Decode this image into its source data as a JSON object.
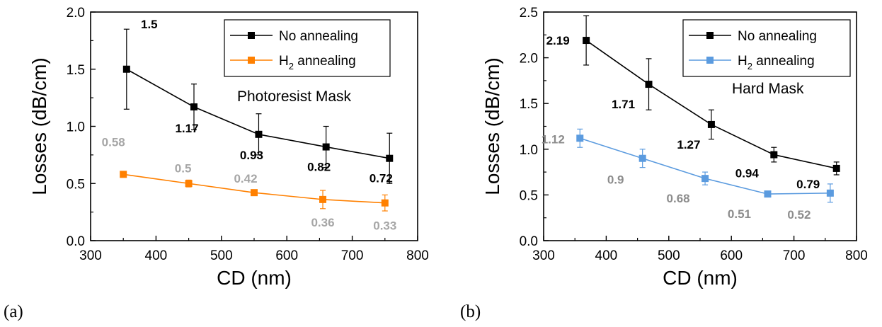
{
  "colors": {
    "no_annealing": "#000000",
    "h2_annealing_a": "#ff8000",
    "h2_annealing_b": "#5b9bdf",
    "label_gray": "#a6a6a6"
  },
  "chart_data": [
    {
      "type": "line",
      "panel_label": "(a)",
      "annotation": "Photoresist Mask",
      "xlabel": "CD (nm)",
      "ylabel": "Losses (dB/cm)",
      "xlim": [
        300,
        800
      ],
      "ylim": [
        0.0,
        2.0
      ],
      "xticks": [
        "300",
        "400",
        "500",
        "600",
        "700",
        "800"
      ],
      "yticks": [
        "0.0",
        "0.5",
        "1.0",
        "1.5",
        "2.0"
      ],
      "legend_position": "top-right",
      "series": [
        {
          "name": "No annealing",
          "x": [
            355,
            458,
            557,
            660,
            757
          ],
          "y": [
            1.5,
            1.17,
            0.93,
            0.82,
            0.72
          ],
          "err": [
            0.35,
            0.2,
            0.18,
            0.18,
            0.22
          ],
          "labels": [
            "1.5",
            "1.17",
            "0.93",
            "0.82",
            "0.72"
          ]
        },
        {
          "name_main": "H",
          "name_sub": "2",
          "name_rest": " annealing",
          "x": [
            350,
            450,
            550,
            655,
            750
          ],
          "y": [
            0.58,
            0.5,
            0.42,
            0.36,
            0.33
          ],
          "err": [
            0.0,
            0.03,
            0.0,
            0.08,
            0.07
          ],
          "labels": [
            "0.58",
            "0.5",
            "0.42",
            "0.36",
            "0.33"
          ]
        }
      ]
    },
    {
      "type": "line",
      "panel_label": "(b)",
      "annotation": "Hard Mask",
      "xlabel": "CD (nm)",
      "ylabel": "Losses (dB/cm)",
      "xlim": [
        300,
        800
      ],
      "ylim": [
        0.0,
        2.5
      ],
      "xticks": [
        "300",
        "400",
        "500",
        "600",
        "700",
        "800"
      ],
      "yticks": [
        "0.0",
        "0.5",
        "1.0",
        "1.5",
        "2.0",
        "2.5"
      ],
      "legend_position": "top-right",
      "series": [
        {
          "name": "No annealing",
          "x": [
            368,
            468,
            568,
            668,
            768
          ],
          "y": [
            2.19,
            1.71,
            1.27,
            0.94,
            0.79
          ],
          "err": [
            0.27,
            0.28,
            0.16,
            0.08,
            0.07
          ],
          "labels": [
            "2.19",
            "1.71",
            "1.27",
            "0.94",
            "0.79"
          ]
        },
        {
          "name_main": "H",
          "name_sub": "2",
          "name_rest": " annealing",
          "x": [
            358,
            458,
            558,
            658,
            758
          ],
          "y": [
            1.12,
            0.9,
            0.68,
            0.51,
            0.52
          ],
          "err": [
            0.1,
            0.1,
            0.07,
            0.0,
            0.1
          ],
          "labels": [
            "1.12",
            "0.9",
            "0.68",
            "0.51",
            "0.52"
          ]
        }
      ]
    }
  ]
}
